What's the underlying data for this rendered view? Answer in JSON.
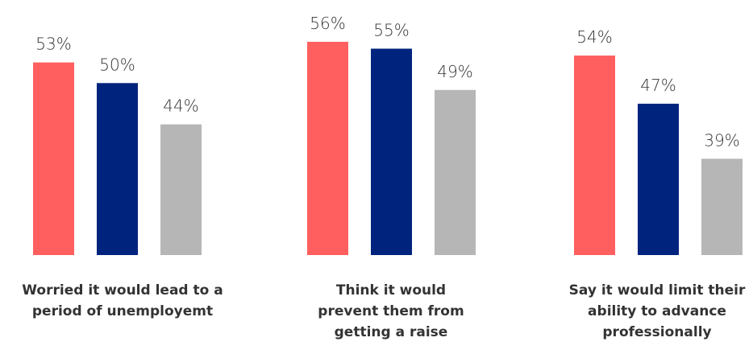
{
  "colors": {
    "series_1": "#ff5f5f",
    "series_2": "#00247d",
    "series_3": "#b6b6b6"
  },
  "chart_data": {
    "type": "bar",
    "categories": [
      [
        "Worried it would lead to a",
        "period of unemployemt"
      ],
      [
        "Think it would",
        "prevent them from",
        "getting a raise"
      ],
      [
        "Say it would limit their",
        "ability to advance",
        "professionally"
      ]
    ],
    "series": [
      {
        "values": [
          53,
          56,
          54
        ]
      },
      {
        "values": [
          50,
          55,
          47
        ]
      },
      {
        "values": [
          44,
          49,
          39
        ]
      }
    ],
    "data_labels": [
      [
        "53%",
        "50%",
        "44%"
      ],
      [
        "56%",
        "55%",
        "49%"
      ],
      [
        "54%",
        "47%",
        "39%"
      ]
    ],
    "grid": false,
    "legend": "none"
  }
}
